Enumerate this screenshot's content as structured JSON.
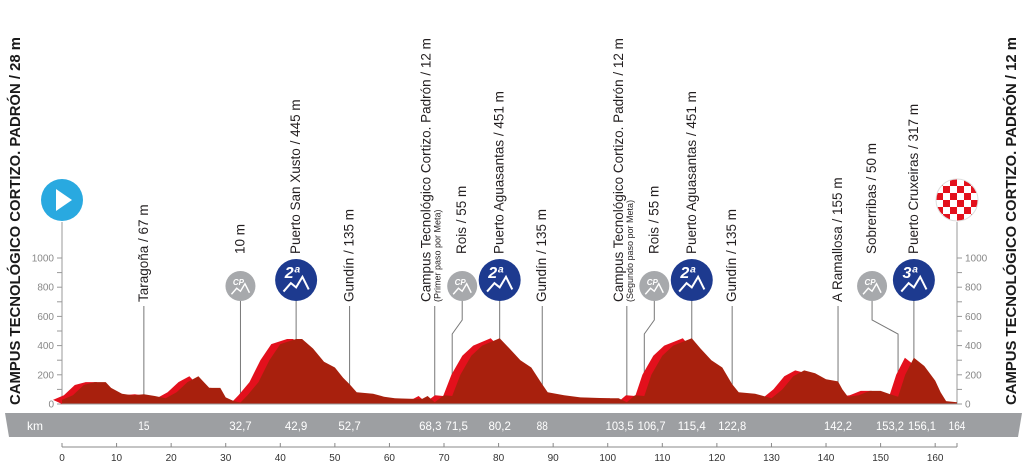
{
  "chart_data": {
    "type": "area",
    "title_start": "CAMPUS TECNOLÓGICO CORTIZO. PADRÓN / 28 m",
    "title_finish": "CAMPUS TECNOLÓGICO CORTIZO. PADRÓN / 12 m",
    "xlabel": "km",
    "xlim": [
      0,
      164
    ],
    "ylim": [
      0,
      1000
    ],
    "x_ticks": [
      0,
      10,
      20,
      30,
      40,
      50,
      60,
      70,
      80,
      90,
      100,
      110,
      120,
      130,
      140,
      150,
      160
    ],
    "y_ticks": [
      0,
      200,
      400,
      600,
      800,
      1000
    ],
    "grid": false,
    "colors": {
      "profile_front": "#a8200d",
      "profile_side": "#e3101c",
      "band": "#9d9fa2",
      "start": "#29a9e0",
      "climb_badge": "#1d3a8f",
      "cp_badge": "#a7a9ac",
      "finish": "#e3101c"
    },
    "profile": [
      [
        0,
        28
      ],
      [
        2,
        60
      ],
      [
        4,
        130
      ],
      [
        6,
        150
      ],
      [
        8,
        150
      ],
      [
        9,
        110
      ],
      [
        11,
        70
      ],
      [
        13,
        60
      ],
      [
        15,
        67
      ],
      [
        17,
        55
      ],
      [
        19,
        40
      ],
      [
        21,
        80
      ],
      [
        23,
        150
      ],
      [
        25,
        190
      ],
      [
        27,
        110
      ],
      [
        29,
        110
      ],
      [
        30,
        45
      ],
      [
        31.5,
        20
      ],
      [
        32.7,
        10
      ],
      [
        34,
        60
      ],
      [
        36,
        150
      ],
      [
        38,
        300
      ],
      [
        40,
        410
      ],
      [
        42.9,
        445
      ],
      [
        44,
        445
      ],
      [
        46,
        380
      ],
      [
        48,
        290
      ],
      [
        50,
        250
      ],
      [
        51.5,
        180
      ],
      [
        52.7,
        135
      ],
      [
        54,
        80
      ],
      [
        57,
        70
      ],
      [
        59,
        50
      ],
      [
        61,
        40
      ],
      [
        64,
        35
      ],
      [
        66,
        35
      ],
      [
        67,
        55
      ],
      [
        68.3,
        12
      ],
      [
        70,
        60
      ],
      [
        71.5,
        55
      ],
      [
        73,
        200
      ],
      [
        75,
        330
      ],
      [
        77,
        400
      ],
      [
        80.2,
        451
      ],
      [
        82,
        380
      ],
      [
        84,
        300
      ],
      [
        86,
        250
      ],
      [
        88,
        135
      ],
      [
        89,
        80
      ],
      [
        92,
        60
      ],
      [
        95,
        45
      ],
      [
        100,
        40
      ],
      [
        102,
        40
      ],
      [
        103.5,
        12
      ],
      [
        105,
        60
      ],
      [
        106.7,
        55
      ],
      [
        108,
        200
      ],
      [
        110,
        330
      ],
      [
        112,
        400
      ],
      [
        115.4,
        451
      ],
      [
        117,
        380
      ],
      [
        119,
        300
      ],
      [
        121,
        250
      ],
      [
        122.8,
        135
      ],
      [
        124,
        80
      ],
      [
        127,
        70
      ],
      [
        130,
        40
      ],
      [
        132,
        100
      ],
      [
        134,
        190
      ],
      [
        136,
        230
      ],
      [
        138,
        210
      ],
      [
        140,
        170
      ],
      [
        142.2,
        155
      ],
      [
        143,
        100
      ],
      [
        144,
        50
      ],
      [
        146,
        60
      ],
      [
        148,
        90
      ],
      [
        150,
        90
      ],
      [
        151.5,
        70
      ],
      [
        153.2,
        50
      ],
      [
        154.5,
        200
      ],
      [
        156.1,
        317
      ],
      [
        158,
        260
      ],
      [
        160,
        160
      ],
      [
        161,
        80
      ],
      [
        162,
        20
      ],
      [
        164,
        12
      ]
    ],
    "points": [
      {
        "km": 15,
        "km_label": "15",
        "name": "Taragoña / 67 m",
        "badge": ""
      },
      {
        "km": 32.7,
        "km_label": "32,7",
        "name": "10 m",
        "badge": "CP"
      },
      {
        "km": 42.9,
        "km_label": "42,9",
        "name": "Puerto San Xusto / 445 m",
        "badge": "2ª"
      },
      {
        "km": 52.7,
        "km_label": "52,7",
        "name": "Gundín / 135 m",
        "badge": ""
      },
      {
        "km": 68.3,
        "km_label": "68,3",
        "name": "Campus Tecnológico Cortizo. Padrón / 12 m",
        "note": "(Primer paso por Meta)",
        "badge": ""
      },
      {
        "km": 71.5,
        "km_label": "71,5",
        "name": "Rois / 55 m",
        "badge": "CP"
      },
      {
        "km": 80.2,
        "km_label": "80,2",
        "name": "Puerto Aguasantas / 451 m",
        "badge": "2ª"
      },
      {
        "km": 88,
        "km_label": "88",
        "name": "Gundín / 135 m",
        "badge": ""
      },
      {
        "km": 103.5,
        "km_label": "103,5",
        "name": "Campus Tecnológico Cortizo. Padrón / 12 m",
        "note": "(Segundo paso por Meta)",
        "badge": ""
      },
      {
        "km": 106.7,
        "km_label": "106,7",
        "name": "Rois / 55 m",
        "badge": "CP"
      },
      {
        "km": 115.4,
        "km_label": "115,4",
        "name": "Puerto Aguasantas / 451 m",
        "badge": "2ª"
      },
      {
        "km": 122.8,
        "km_label": "122,8",
        "name": "Gundín / 135 m",
        "badge": ""
      },
      {
        "km": 142.2,
        "km_label": "142,2",
        "name": "A Ramallosa / 155 m",
        "badge": ""
      },
      {
        "km": 153.2,
        "km_label": "153,2",
        "name": "Sobrerribas / 50 m",
        "badge": "CP"
      },
      {
        "km": 156.1,
        "km_label": "156,1",
        "name": "Puerto Cruxeiras / 317 m",
        "badge": "3ª"
      },
      {
        "km": 164,
        "km_label": "164",
        "name": "",
        "badge": ""
      }
    ]
  }
}
